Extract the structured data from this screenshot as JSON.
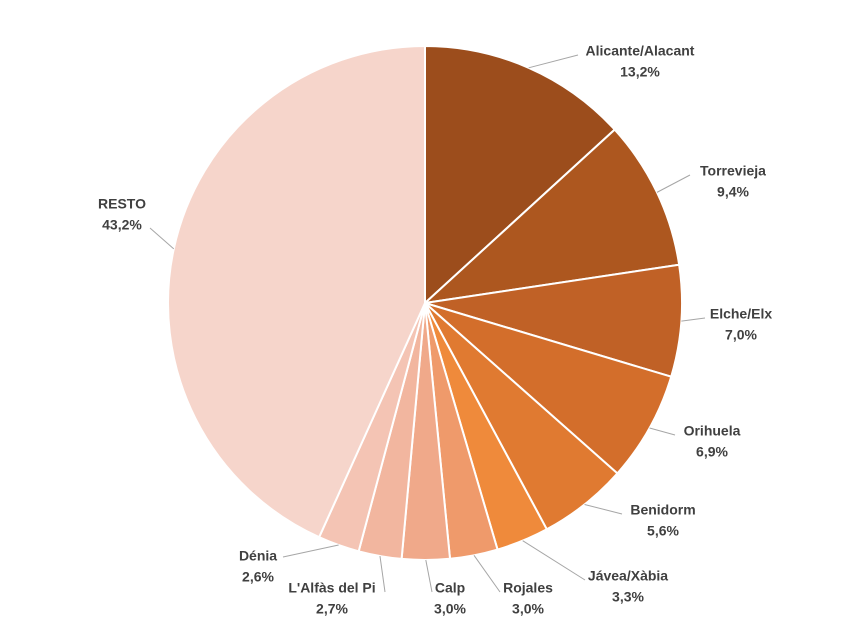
{
  "chart_data": {
    "type": "pie",
    "categories": [
      "Alicante/Alacant",
      "Torrevieja",
      "Elche/Elx",
      "Orihuela",
      "Benidorm",
      "Jávea/Xàbia",
      "Rojales",
      "Calp",
      "L'Alfàs del Pi",
      "Dénia",
      "RESTO"
    ],
    "values": [
      13.2,
      9.4,
      7.0,
      6.9,
      5.6,
      3.3,
      3.0,
      3.0,
      2.7,
      2.6,
      43.2
    ],
    "value_labels": [
      "13,2%",
      "9,4%",
      "7,0%",
      "6,9%",
      "5,6%",
      "3,3%",
      "3,0%",
      "3,0%",
      "2,7%",
      "2,6%",
      "43,2%"
    ],
    "colors": [
      "#9c4d1c",
      "#ad571f",
      "#c06126",
      "#d36e2b",
      "#e07a31",
      "#ef8a3b",
      "#ef9a6b",
      "#f0a98a",
      "#f2b69f",
      "#f4c4b4",
      "#f6d5cb"
    ]
  }
}
